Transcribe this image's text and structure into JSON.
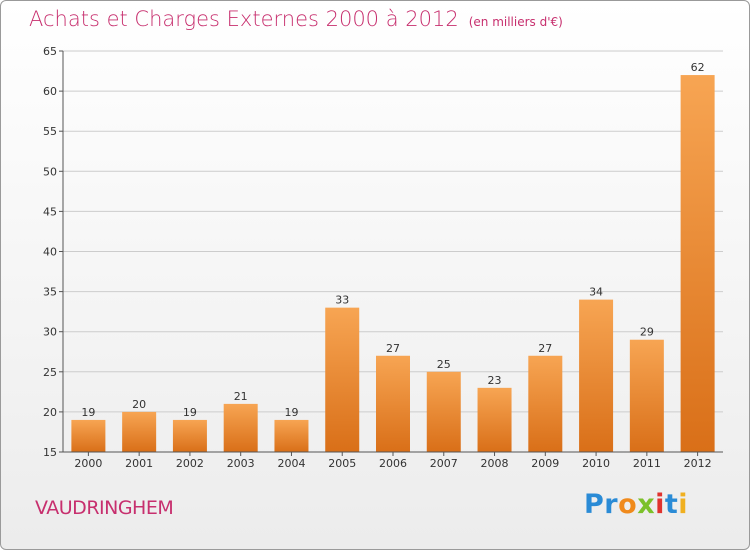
{
  "title": "Achats et Charges Externes 2000 à 2012",
  "unit": "(en milliers d'€)",
  "city": "VAUDRINGHEM",
  "logo": {
    "letters": [
      {
        "ch": "P",
        "color": "#2a8bd6"
      },
      {
        "ch": "r",
        "color": "#2a8bd6"
      },
      {
        "ch": "o",
        "color": "#f08a1c"
      },
      {
        "ch": "x",
        "color": "#7cc12a"
      },
      {
        "ch": "i",
        "color": "#e0332e"
      },
      {
        "ch": "t",
        "color": "#2a8bd6"
      },
      {
        "ch": "i",
        "color": "#f0b020"
      }
    ]
  },
  "colors": {
    "bar_top": "#f7a553",
    "bar_bottom": "#d96f18",
    "title": "#c72f6e",
    "grid": "#cccccc"
  },
  "chart_data": {
    "type": "bar",
    "categories": [
      "2000",
      "2001",
      "2002",
      "2003",
      "2004",
      "2005",
      "2006",
      "2007",
      "2008",
      "2009",
      "2010",
      "2011",
      "2012"
    ],
    "values": [
      19,
      20,
      19,
      21,
      19,
      33,
      27,
      25,
      23,
      27,
      34,
      29,
      62
    ],
    "ylim": [
      15,
      65
    ],
    "yticks": [
      15,
      20,
      25,
      30,
      35,
      40,
      45,
      50,
      55,
      60,
      65
    ],
    "grid": true
  }
}
